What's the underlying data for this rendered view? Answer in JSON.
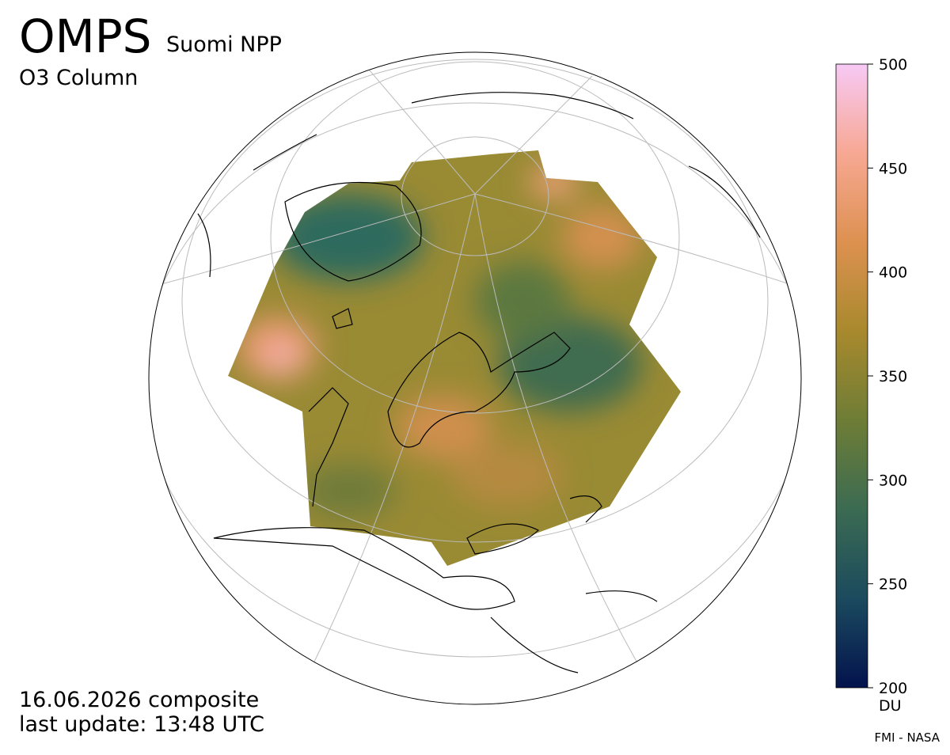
{
  "header": {
    "title": "OMPS",
    "subtitle": "Suomi NPP",
    "product": "O3 Column"
  },
  "footer": {
    "date": "16.06.2026 composite",
    "update": "last update: 13:48 UTC",
    "credit": "FMI - NASA"
  },
  "colorbar": {
    "range": [
      200,
      500
    ],
    "ticks": [
      200,
      250,
      300,
      350,
      400,
      450,
      500
    ],
    "unit": "DU",
    "colors": [
      "#03134d",
      "#1b4a5e",
      "#3b6b52",
      "#6e7d36",
      "#a8892d",
      "#dd9150",
      "#f7a893",
      "#f7c9f5"
    ]
  }
}
